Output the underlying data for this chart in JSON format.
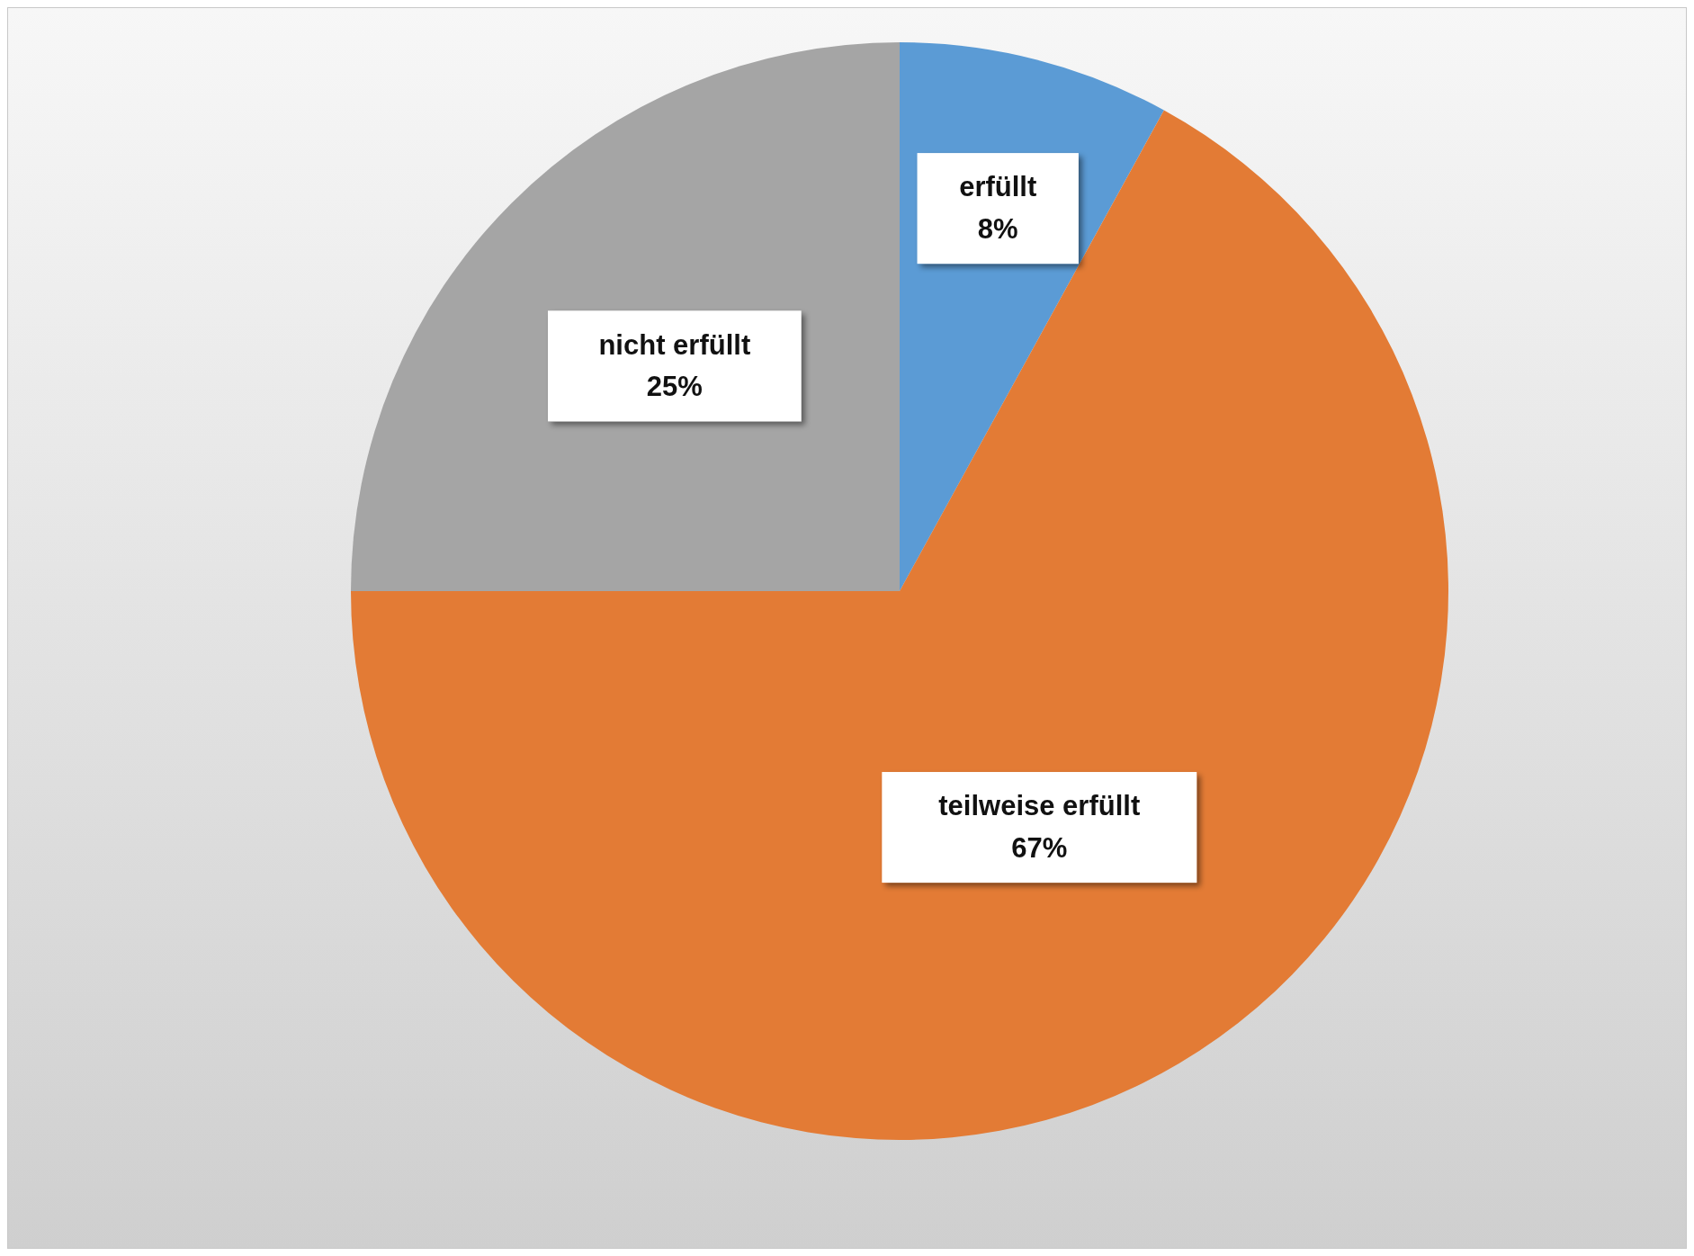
{
  "chart_data": {
    "type": "pie",
    "categories": [
      "erfüllt",
      "teilweise erfüllt",
      "nicht erfüllt"
    ],
    "values": [
      8,
      67,
      25
    ],
    "colors": [
      "#5b9bd5",
      "#e37b35",
      "#a5a5a5"
    ],
    "value_labels": [
      "8%",
      "67%",
      "25%"
    ]
  }
}
